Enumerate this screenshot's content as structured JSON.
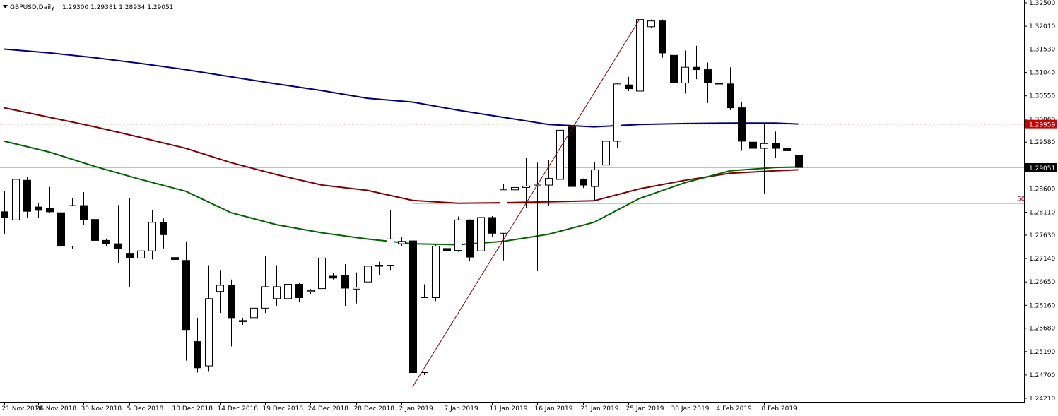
{
  "header": {
    "symbol_timeframe": "GBPUSD,Daily",
    "ohlc": "1.29300 1.29381 1.28934 1.29051",
    "menu_icon": "triangle-down-icon"
  },
  "price_labels": {
    "dashed_level": "1.29959",
    "current": "1.29051",
    "fib_level": "50"
  },
  "colors": {
    "background": "#ffffff",
    "candle_outline": "#000000",
    "bull_fill": "#ffffff",
    "bear_fill": "#000000",
    "ma_long": "#00007f",
    "ma_mid": "#7f0000",
    "ma_short": "#006400",
    "level_line": "#8b0000",
    "current_line": "#c0c0c0"
  },
  "chart_data": {
    "type": "candlestick",
    "y_ticks": [
      "1.32500",
      "1.32010",
      "1.31530",
      "1.31040",
      "1.30550",
      "1.30060",
      "1.29580",
      "1.29090",
      "1.28600",
      "1.28110",
      "1.27630",
      "1.27140",
      "1.26650",
      "1.26160",
      "1.25680",
      "1.25190",
      "1.24700",
      "1.24210"
    ],
    "ylim": [
      1.2421,
      1.325
    ],
    "x_ticks": [
      {
        "label": "21 Nov 2018",
        "index": 0
      },
      {
        "label": "26 Nov 2018",
        "index": 3
      },
      {
        "label": "30 Nov 2018",
        "index": 7
      },
      {
        "label": "5 Dec 2018",
        "index": 11
      },
      {
        "label": "10 Dec 2018",
        "index": 15
      },
      {
        "label": "14 Dec 2018",
        "index": 19
      },
      {
        "label": "19 Dec 2018",
        "index": 23
      },
      {
        "label": "24 Dec 2018",
        "index": 27
      },
      {
        "label": "28 Dec 2018",
        "index": 31
      },
      {
        "label": "2 Jan 2019",
        "index": 35
      },
      {
        "label": "7 Jan 2019",
        "index": 39
      },
      {
        "label": "11 Jan 2019",
        "index": 43
      },
      {
        "label": "16 Jan 2019",
        "index": 47
      },
      {
        "label": "21 Jan 2019",
        "index": 51
      },
      {
        "label": "25 Jan 2019",
        "index": 55
      },
      {
        "label": "30 Jan 2019",
        "index": 59
      },
      {
        "label": "4 Feb 2019",
        "index": 63
      },
      {
        "label": "8 Feb 2019",
        "index": 67
      }
    ],
    "candles": [
      {
        "o": 1.2812,
        "h": 1.2855,
        "l": 1.2765,
        "c": 1.28
      },
      {
        "o": 1.2795,
        "h": 1.292,
        "l": 1.2788,
        "c": 1.288
      },
      {
        "o": 1.2878,
        "h": 1.2885,
        "l": 1.28,
        "c": 1.2813
      },
      {
        "o": 1.2822,
        "h": 1.283,
        "l": 1.28,
        "c": 1.2815
      },
      {
        "o": 1.282,
        "h": 1.2864,
        "l": 1.281,
        "c": 1.2812
      },
      {
        "o": 1.281,
        "h": 1.284,
        "l": 1.2728,
        "c": 1.274
      },
      {
        "o": 1.274,
        "h": 1.284,
        "l": 1.2735,
        "c": 1.2825
      },
      {
        "o": 1.2825,
        "h": 1.2853,
        "l": 1.2785,
        "c": 1.2796
      },
      {
        "o": 1.2796,
        "h": 1.2808,
        "l": 1.2748,
        "c": 1.2752
      },
      {
        "o": 1.2752,
        "h": 1.2756,
        "l": 1.274,
        "c": 1.2745
      },
      {
        "o": 1.2745,
        "h": 1.2826,
        "l": 1.2705,
        "c": 1.2735
      },
      {
        "o": 1.2725,
        "h": 1.284,
        "l": 1.2655,
        "c": 1.2716
      },
      {
        "o": 1.2715,
        "h": 1.281,
        "l": 1.269,
        "c": 1.273
      },
      {
        "o": 1.273,
        "h": 1.2815,
        "l": 1.2712,
        "c": 1.279
      },
      {
        "o": 1.279,
        "h": 1.2798,
        "l": 1.2735,
        "c": 1.2764
      },
      {
        "o": 1.2716,
        "h": 1.2718,
        "l": 1.2709,
        "c": 1.2712
      },
      {
        "o": 1.271,
        "h": 1.275,
        "l": 1.25,
        "c": 1.2565
      },
      {
        "o": 1.254,
        "h": 1.259,
        "l": 1.2475,
        "c": 1.2485
      },
      {
        "o": 1.2489,
        "h": 1.27,
        "l": 1.2478,
        "c": 1.263
      },
      {
        "o": 1.2645,
        "h": 1.269,
        "l": 1.26,
        "c": 1.2658
      },
      {
        "o": 1.2658,
        "h": 1.267,
        "l": 1.253,
        "c": 1.259
      },
      {
        "o": 1.2584,
        "h": 1.259,
        "l": 1.2575,
        "c": 1.2584
      },
      {
        "o": 1.259,
        "h": 1.265,
        "l": 1.258,
        "c": 1.261
      },
      {
        "o": 1.261,
        "h": 1.272,
        "l": 1.26,
        "c": 1.2655
      },
      {
        "o": 1.263,
        "h": 1.27,
        "l": 1.2615,
        "c": 1.2655
      },
      {
        "o": 1.263,
        "h": 1.272,
        "l": 1.2616,
        "c": 1.266
      },
      {
        "o": 1.266,
        "h": 1.2663,
        "l": 1.2622,
        "c": 1.2632
      },
      {
        "o": 1.2645,
        "h": 1.265,
        "l": 1.264,
        "c": 1.2647
      },
      {
        "o": 1.2651,
        "h": 1.274,
        "l": 1.264,
        "c": 1.2715
      },
      {
        "o": 1.2677,
        "h": 1.2684,
        "l": 1.267,
        "c": 1.2673
      },
      {
        "o": 1.2678,
        "h": 1.2702,
        "l": 1.2615,
        "c": 1.2652
      },
      {
        "o": 1.265,
        "h": 1.2685,
        "l": 1.262,
        "c": 1.2654
      },
      {
        "o": 1.2665,
        "h": 1.271,
        "l": 1.264,
        "c": 1.2698
      },
      {
        "o": 1.27,
        "h": 1.2707,
        "l": 1.268,
        "c": 1.27
      },
      {
        "o": 1.27,
        "h": 1.2815,
        "l": 1.269,
        "c": 1.2755
      },
      {
        "o": 1.2745,
        "h": 1.276,
        "l": 1.274,
        "c": 1.275
      },
      {
        "o": 1.2751,
        "h": 1.2785,
        "l": 1.2445,
        "c": 1.2475
      },
      {
        "o": 1.2475,
        "h": 1.266,
        "l": 1.247,
        "c": 1.2632
      },
      {
        "o": 1.2632,
        "h": 1.2745,
        "l": 1.2625,
        "c": 1.274
      },
      {
        "o": 1.2735,
        "h": 1.274,
        "l": 1.2725,
        "c": 1.2731
      },
      {
        "o": 1.2731,
        "h": 1.2802,
        "l": 1.2728,
        "c": 1.2795
      },
      {
        "o": 1.2795,
        "h": 1.2796,
        "l": 1.2708,
        "c": 1.2717
      },
      {
        "o": 1.273,
        "h": 1.2805,
        "l": 1.2723,
        "c": 1.28
      },
      {
        "o": 1.28,
        "h": 1.2803,
        "l": 1.276,
        "c": 1.2767
      },
      {
        "o": 1.2767,
        "h": 1.287,
        "l": 1.271,
        "c": 1.2858
      },
      {
        "o": 1.2858,
        "h": 1.2872,
        "l": 1.2852,
        "c": 1.2863
      },
      {
        "o": 1.2863,
        "h": 1.2925,
        "l": 1.282,
        "c": 1.2866
      },
      {
        "o": 1.2866,
        "h": 1.2915,
        "l": 1.2688,
        "c": 1.2868
      },
      {
        "o": 1.2868,
        "h": 1.292,
        "l": 1.2825,
        "c": 1.2882
      },
      {
        "o": 1.288,
        "h": 1.3005,
        "l": 1.284,
        "c": 1.2983
      },
      {
        "o": 1.299,
        "h": 1.3003,
        "l": 1.286,
        "c": 1.2865
      },
      {
        "o": 1.288,
        "h": 1.2882,
        "l": 1.2862,
        "c": 1.2868
      },
      {
        "o": 1.2865,
        "h": 1.2916,
        "l": 1.2835,
        "c": 1.29
      },
      {
        "o": 1.291,
        "h": 1.298,
        "l": 1.2835,
        "c": 1.296
      },
      {
        "o": 1.296,
        "h": 1.3082,
        "l": 1.2946,
        "c": 1.308
      },
      {
        "o": 1.3078,
        "h": 1.3095,
        "l": 1.3065,
        "c": 1.307
      },
      {
        "o": 1.3065,
        "h": 1.3215,
        "l": 1.3055,
        "c": 1.3215
      },
      {
        "o": 1.32,
        "h": 1.3215,
        "l": 1.3198,
        "c": 1.3212
      },
      {
        "o": 1.3212,
        "h": 1.3215,
        "l": 1.3135,
        "c": 1.3145
      },
      {
        "o": 1.314,
        "h": 1.3198,
        "l": 1.308,
        "c": 1.3082
      },
      {
        "o": 1.3082,
        "h": 1.315,
        "l": 1.306,
        "c": 1.3115
      },
      {
        "o": 1.3115,
        "h": 1.316,
        "l": 1.309,
        "c": 1.311
      },
      {
        "o": 1.311,
        "h": 1.3125,
        "l": 1.304,
        "c": 1.3082
      },
      {
        "o": 1.3082,
        "h": 1.3086,
        "l": 1.3076,
        "c": 1.308
      },
      {
        "o": 1.308,
        "h": 1.3115,
        "l": 1.3025,
        "c": 1.303
      },
      {
        "o": 1.303,
        "h": 1.3043,
        "l": 1.294,
        "c": 1.296
      },
      {
        "o": 1.2958,
        "h": 1.2985,
        "l": 1.2925,
        "c": 1.2945
      },
      {
        "o": 1.2945,
        "h": 1.2998,
        "l": 1.285,
        "c": 1.2955
      },
      {
        "o": 1.2955,
        "h": 1.298,
        "l": 1.2925,
        "c": 1.2945
      },
      {
        "o": 1.2945,
        "h": 1.2948,
        "l": 1.2938,
        "c": 1.294
      },
      {
        "o": 1.293,
        "h": 1.2938,
        "l": 1.2893,
        "c": 1.2905
      }
    ],
    "ma_long": [
      [
        0,
        1.3153
      ],
      [
        4,
        1.3145
      ],
      [
        8,
        1.3135
      ],
      [
        12,
        1.3123
      ],
      [
        16,
        1.311
      ],
      [
        20,
        1.3095
      ],
      [
        24,
        1.308
      ],
      [
        28,
        1.3066
      ],
      [
        32,
        1.305
      ],
      [
        36,
        1.3042
      ],
      [
        40,
        1.3025
      ],
      [
        44,
        1.301
      ],
      [
        48,
        1.2995
      ],
      [
        52,
        1.299
      ],
      [
        56,
        1.2995
      ],
      [
        60,
        1.2997
      ],
      [
        64,
        1.2998
      ],
      [
        68,
        1.2998
      ],
      [
        70,
        1.2996
      ]
    ],
    "ma_mid": [
      [
        0,
        1.303
      ],
      [
        4,
        1.301
      ],
      [
        8,
        1.299
      ],
      [
        12,
        1.2968
      ],
      [
        16,
        1.2945
      ],
      [
        20,
        1.2915
      ],
      [
        24,
        1.289
      ],
      [
        28,
        1.2868
      ],
      [
        32,
        1.2857
      ],
      [
        36,
        1.2836
      ],
      [
        40,
        1.283
      ],
      [
        44,
        1.2831
      ],
      [
        48,
        1.2833
      ],
      [
        52,
        1.2835
      ],
      [
        56,
        1.286
      ],
      [
        60,
        1.2878
      ],
      [
        64,
        1.2893
      ],
      [
        68,
        1.2898
      ],
      [
        70,
        1.29
      ]
    ],
    "ma_short": [
      [
        0,
        1.296
      ],
      [
        4,
        1.2937
      ],
      [
        8,
        1.2907
      ],
      [
        12,
        1.288
      ],
      [
        16,
        1.2855
      ],
      [
        20,
        1.281
      ],
      [
        24,
        1.2785
      ],
      [
        28,
        1.2768
      ],
      [
        32,
        1.2755
      ],
      [
        36,
        1.2745
      ],
      [
        40,
        1.2743
      ],
      [
        44,
        1.275
      ],
      [
        48,
        1.2765
      ],
      [
        52,
        1.279
      ],
      [
        56,
        1.284
      ],
      [
        60,
        1.2873
      ],
      [
        64,
        1.2898
      ],
      [
        68,
        1.2905
      ],
      [
        70,
        1.2906
      ]
    ],
    "trendline": {
      "from": [
        36,
        1.2445
      ],
      "to": [
        56,
        1.3215
      ]
    },
    "dashed_level": 1.29959,
    "fib_level": {
      "value": 1.283,
      "from_index": 36
    },
    "current_price": 1.29051
  }
}
